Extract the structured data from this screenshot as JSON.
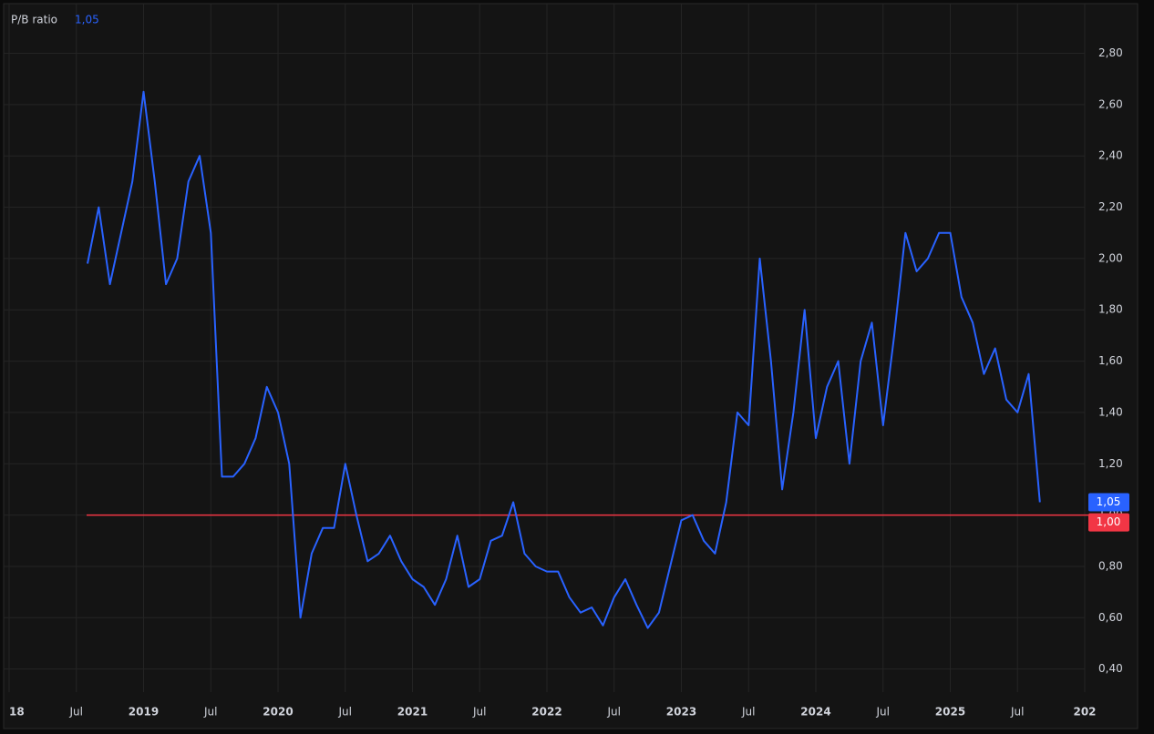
{
  "chart_data": {
    "type": "line",
    "series": [
      {
        "name": "P/B ratio",
        "color": "#2962ff",
        "last_label": "1,05",
        "x": [
          "2018-08",
          "2018-09",
          "2018-10",
          "2018-11",
          "2018-12",
          "2019-01",
          "2019-02",
          "2019-03",
          "2019-04",
          "2019-05",
          "2019-06",
          "2019-07",
          "2019-08",
          "2019-09",
          "2019-10",
          "2019-11",
          "2019-12",
          "2020-01",
          "2020-02",
          "2020-03",
          "2020-04",
          "2020-05",
          "2020-06",
          "2020-07",
          "2020-08",
          "2020-09",
          "2020-10",
          "2020-11",
          "2020-12",
          "2021-01",
          "2021-02",
          "2021-03",
          "2021-04",
          "2021-05",
          "2021-06",
          "2021-07",
          "2021-08",
          "2021-09",
          "2021-10",
          "2021-11",
          "2021-12",
          "2022-01",
          "2022-02",
          "2022-03",
          "2022-04",
          "2022-05",
          "2022-06",
          "2022-07",
          "2022-08",
          "2022-09",
          "2022-10",
          "2022-11",
          "2022-12",
          "2023-01",
          "2023-02",
          "2023-03",
          "2023-04",
          "2023-05",
          "2023-06",
          "2023-07",
          "2023-08",
          "2023-09",
          "2023-10",
          "2023-11",
          "2023-12",
          "2024-01",
          "2024-02",
          "2024-03",
          "2024-04",
          "2024-05",
          "2024-06",
          "2024-07",
          "2024-08",
          "2024-09",
          "2024-10",
          "2024-11",
          "2024-12",
          "2025-01",
          "2025-02",
          "2025-03",
          "2025-04",
          "2025-05",
          "2025-06",
          "2025-07",
          "2025-08",
          "2025-09"
        ],
        "values": [
          1.98,
          2.2,
          1.9,
          2.1,
          2.3,
          2.65,
          2.3,
          1.9,
          2.0,
          2.3,
          2.4,
          2.1,
          1.15,
          1.15,
          1.2,
          1.3,
          1.5,
          1.4,
          1.2,
          0.6,
          0.85,
          0.95,
          0.95,
          1.2,
          1.0,
          0.82,
          0.85,
          0.92,
          0.82,
          0.75,
          0.72,
          0.65,
          0.75,
          0.92,
          0.72,
          0.75,
          0.9,
          0.92,
          1.05,
          0.85,
          0.8,
          0.78,
          0.78,
          0.68,
          0.62,
          0.64,
          0.57,
          0.68,
          0.75,
          0.65,
          0.56,
          0.62,
          0.8,
          0.98,
          1.0,
          0.9,
          0.85,
          1.05,
          1.4,
          1.35,
          2.0,
          1.6,
          1.1,
          1.4,
          1.8,
          1.3,
          1.5,
          1.6,
          1.2,
          1.6,
          1.75,
          1.35,
          1.7,
          2.1,
          1.95,
          2.0,
          2.1,
          2.1,
          1.85,
          1.75,
          1.55,
          1.65,
          1.45,
          1.4,
          1.55,
          1.05
        ]
      }
    ],
    "hline": {
      "value": 1.0,
      "label": "1,00",
      "color": "#f23645"
    },
    "xlim": [
      "2018-01",
      "2026-01"
    ],
    "xticks": [
      {
        "value": "2018-01",
        "label": "18"
      },
      {
        "value": "2018-07",
        "label": "Jul"
      },
      {
        "value": "2019-01",
        "label": "2019"
      },
      {
        "value": "2019-07",
        "label": "Jul"
      },
      {
        "value": "2020-01",
        "label": "2020"
      },
      {
        "value": "2020-07",
        "label": "Jul"
      },
      {
        "value": "2021-01",
        "label": "2021"
      },
      {
        "value": "2021-07",
        "label": "Jul"
      },
      {
        "value": "2022-01",
        "label": "2022"
      },
      {
        "value": "2022-07",
        "label": "Jul"
      },
      {
        "value": "2023-01",
        "label": "2023"
      },
      {
        "value": "2023-07",
        "label": "Jul"
      },
      {
        "value": "2024-01",
        "label": "2024"
      },
      {
        "value": "2024-07",
        "label": "Jul"
      },
      {
        "value": "2025-01",
        "label": "2025"
      },
      {
        "value": "2025-07",
        "label": "Jul"
      },
      {
        "value": "2026-01",
        "label": "202"
      }
    ],
    "ylim": [
      0.31,
      2.99
    ],
    "yticks": [
      {
        "value": 0.4,
        "label": "0,40"
      },
      {
        "value": 0.6,
        "label": "0,60"
      },
      {
        "value": 0.8,
        "label": "0,80"
      },
      {
        "value": 1.0,
        "label": "1,00"
      },
      {
        "value": 1.2,
        "label": "1,20"
      },
      {
        "value": 1.4,
        "label": "1,40"
      },
      {
        "value": 1.6,
        "label": "1,60"
      },
      {
        "value": 1.8,
        "label": "1,80"
      },
      {
        "value": 2.0,
        "label": "2,00"
      },
      {
        "value": 2.2,
        "label": "2,20"
      },
      {
        "value": 2.4,
        "label": "2,40"
      },
      {
        "value": 2.6,
        "label": "2,60"
      },
      {
        "value": 2.8,
        "label": "2,80"
      }
    ],
    "grid": true
  }
}
